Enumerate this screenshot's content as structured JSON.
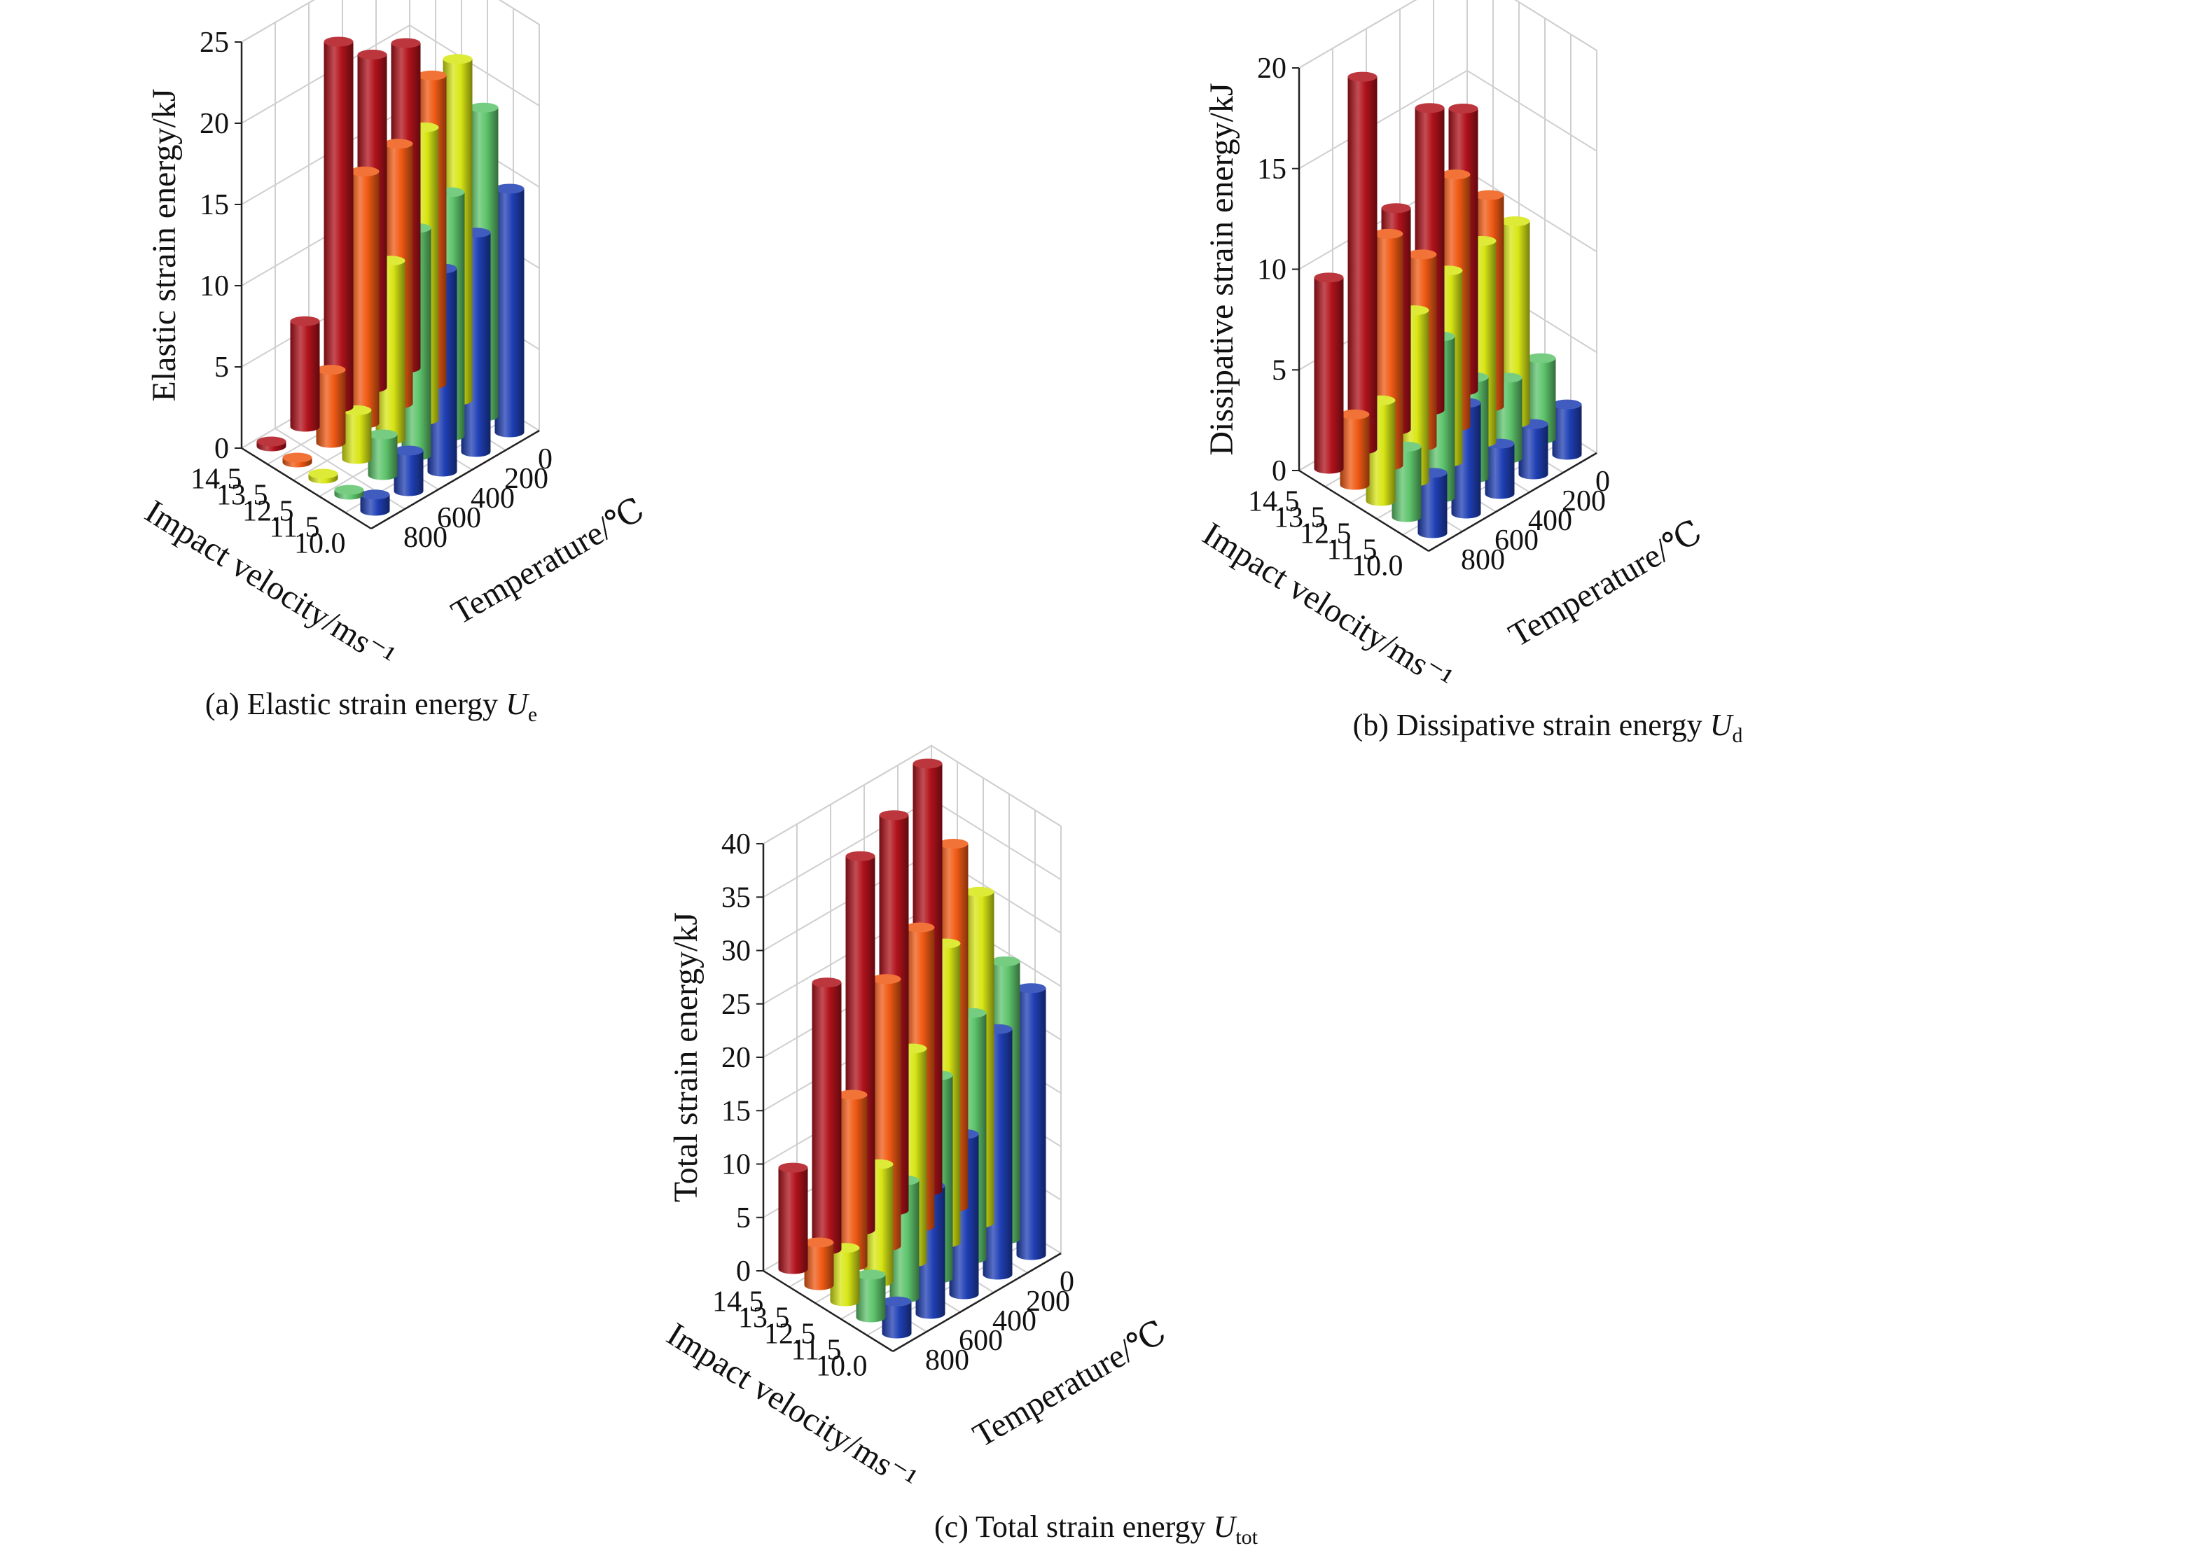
{
  "colors": {
    "v14_5": "#b0121b",
    "v13_5": "#f05a14",
    "v12_5": "#d8e615",
    "v11_5": "#5ec46c",
    "v10_0": "#1f3fb4",
    "grid": "#cfcfcf",
    "axis": "#222222"
  },
  "chart_data": [
    {
      "type": "bar3d",
      "caption": "(a) Elastic strain energy ",
      "caption_sym": "U",
      "caption_sub": "e",
      "zlabel": "Elastic strain energy/kJ",
      "xlabel": "Impact velocity/ms⁻¹",
      "ylabel": "Temperature/℃",
      "zlim": [
        0,
        25
      ],
      "zticks": [
        "0",
        "5",
        "10",
        "15",
        "20",
        "25"
      ],
      "velocities": [
        "14.5",
        "13.5",
        "12.5",
        "11.5",
        "10.0"
      ],
      "temperatures": [
        "800",
        "600",
        "400",
        "200",
        "0"
      ],
      "values": [
        [
          0.3,
          6.5,
          22.5,
          20.5,
          20
        ],
        [
          0.3,
          4.5,
          15.5,
          16,
          19
        ],
        [
          0.3,
          3,
          11,
          18,
          21
        ],
        [
          0.3,
          2.5,
          14,
          15,
          19
        ],
        [
          1,
          2.5,
          12.5,
          13.5,
          15
        ]
      ]
    },
    {
      "type": "bar3d",
      "caption": "(b) Dissipative strain energy ",
      "caption_sym": "U",
      "caption_sub": "d",
      "zlabel": "Dissipative strain energy/kJ",
      "xlabel": "Impact velocity/ms⁻¹",
      "ylabel": "Temperature/℃",
      "zlim": [
        0,
        20
      ],
      "zticks": [
        "0",
        "5",
        "10",
        "15",
        "20"
      ],
      "velocities": [
        "14.5",
        "13.5",
        "12.5",
        "11.5",
        "10.0"
      ],
      "temperatures": [
        "800",
        "600",
        "400",
        "200",
        "0"
      ],
      "values": [
        [
          9.5,
          18.5,
          11,
          15,
          14
        ],
        [
          3.5,
          11.5,
          9.5,
          12.5,
          10.5
        ],
        [
          5,
          8.5,
          9.5,
          10,
          10
        ],
        [
          3.5,
          8,
          5,
          4,
          4
        ],
        [
          3,
          5.5,
          2.5,
          2.5,
          2.5
        ]
      ]
    },
    {
      "type": "bar3d",
      "caption": "(c) Total strain energy ",
      "caption_sym": "U",
      "caption_sub": "tot",
      "zlabel": "Total strain energy/kJ",
      "xlabel": "Impact velocity/ms⁻¹",
      "ylabel": "Temperature/℃",
      "zlim": [
        0,
        40
      ],
      "zticks": [
        "0",
        "5",
        "10",
        "15",
        "20",
        "25",
        "30",
        "35",
        "40"
      ],
      "velocities": [
        "14.5",
        "13.5",
        "12.5",
        "11.5",
        "10.0"
      ],
      "temperatures": [
        "800",
        "600",
        "400",
        "200",
        "0"
      ],
      "values": [
        [
          9.5,
          25,
          35,
          37,
          40
        ],
        [
          4,
          16,
          25,
          28,
          34
        ],
        [
          5,
          11,
          20,
          28,
          31
        ],
        [
          4,
          11,
          19,
          23,
          26
        ],
        [
          3,
          12,
          15,
          23,
          25
        ]
      ]
    }
  ]
}
